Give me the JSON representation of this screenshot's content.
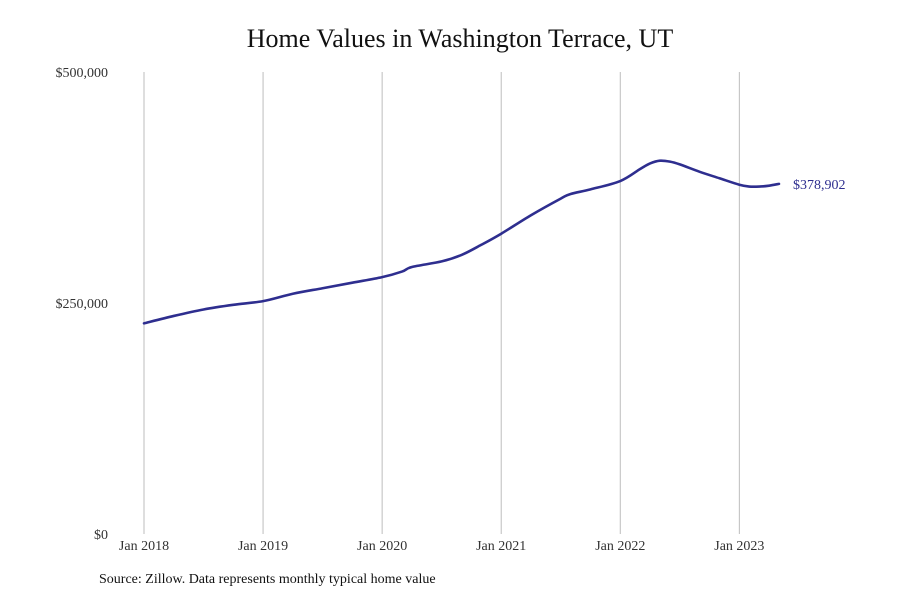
{
  "chart_data": {
    "type": "line",
    "title": "Home Values in Washington Terrace, UT",
    "xlabel": "",
    "ylabel": "",
    "source": "Source: Zillow. Data represents monthly typical home value",
    "ylim": [
      0,
      500000
    ],
    "y_ticks": [
      {
        "value": 0,
        "label": "$0"
      },
      {
        "value": 250000,
        "label": "$250,000"
      },
      {
        "value": 500000,
        "label": "$500,000"
      }
    ],
    "x_ticks": [
      {
        "value": 2018.0,
        "label": "Jan 2018"
      },
      {
        "value": 2019.0,
        "label": "Jan 2019"
      },
      {
        "value": 2020.0,
        "label": "Jan 2020"
      },
      {
        "value": 2021.0,
        "label": "Jan 2021"
      },
      {
        "value": 2022.0,
        "label": "Jan 2022"
      },
      {
        "value": 2023.0,
        "label": "Jan 2023"
      }
    ],
    "xlim": [
      2018.0,
      2023.333
    ],
    "grid": "vertical",
    "line_color": "#2e2e8f",
    "grid_color": "#bdbdbd",
    "end_label": "$378,902",
    "series": [
      {
        "x": [
          2018.0,
          2018.25,
          2018.5,
          2018.75,
          2019.0,
          2019.25,
          2019.5,
          2019.75,
          2020.0,
          2020.167,
          2020.25,
          2020.5,
          2020.667,
          2020.833,
          2021.0,
          2021.25,
          2021.5,
          2021.583,
          2021.75,
          2022.0,
          2022.167,
          2022.25,
          2022.333,
          2022.417,
          2022.5,
          2022.667,
          2022.833,
          2023.0,
          2023.083,
          2023.167,
          2023.25,
          2023.333
        ],
        "values": [
          228000,
          236000,
          243000,
          248000,
          252000,
          260000,
          266000,
          272000,
          278000,
          284000,
          289000,
          295000,
          302000,
          313000,
          325000,
          345000,
          363000,
          368000,
          373000,
          382000,
          395000,
          401000,
          404000,
          403000,
          400000,
          392000,
          385000,
          378000,
          376000,
          376000,
          377000,
          378902
        ]
      }
    ]
  }
}
